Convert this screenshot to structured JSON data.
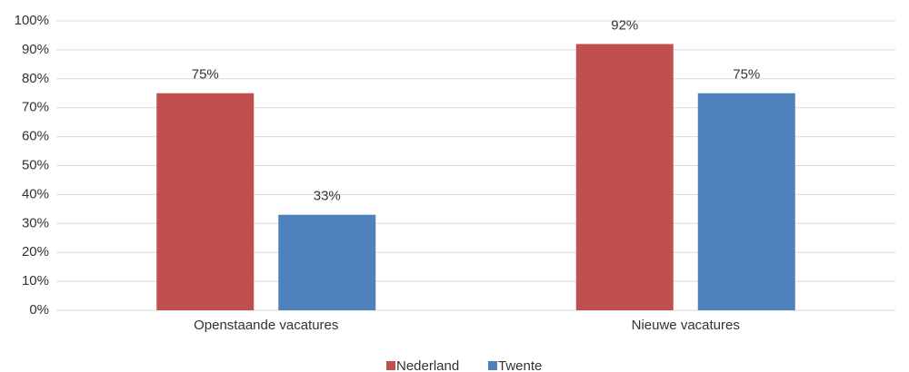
{
  "chart_data": {
    "type": "bar",
    "categories": [
      "Openstaande vacatures",
      "Nieuwe vacatures"
    ],
    "series": [
      {
        "name": "Nederland",
        "color": "#c0504d",
        "values": [
          75,
          92
        ],
        "value_labels": [
          "75%",
          "92%"
        ]
      },
      {
        "name": "Twente",
        "color": "#4f81bd",
        "values": [
          33,
          75
        ],
        "value_labels": [
          "33%",
          "75%"
        ]
      }
    ],
    "ylim": [
      0,
      100
    ],
    "yticks": [
      {
        "value": 0,
        "label": "0%"
      },
      {
        "value": 10,
        "label": "10%"
      },
      {
        "value": 20,
        "label": "20%"
      },
      {
        "value": 30,
        "label": "30%"
      },
      {
        "value": 40,
        "label": "40%"
      },
      {
        "value": 50,
        "label": "50%"
      },
      {
        "value": 60,
        "label": "60%"
      },
      {
        "value": 70,
        "label": "70%"
      },
      {
        "value": 80,
        "label": "80%"
      },
      {
        "value": 90,
        "label": "90%"
      },
      {
        "value": 100,
        "label": "100%"
      }
    ],
    "grid": true,
    "legend": "bottom"
  }
}
